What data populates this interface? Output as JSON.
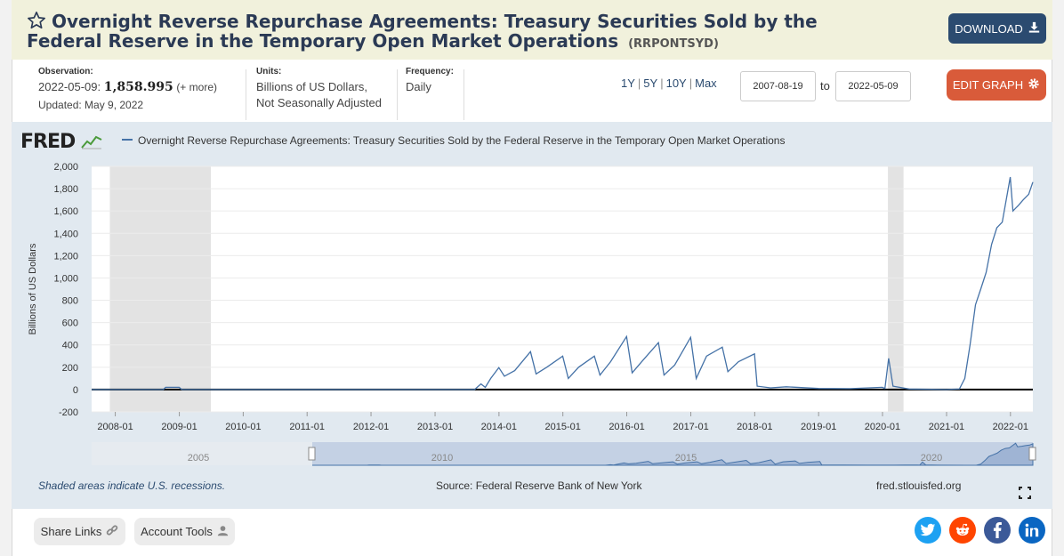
{
  "header": {
    "title": "Overnight Reverse Repurchase Agreements: Treasury Securities Sold by the Federal Reserve in the Temporary Open Market Operations",
    "series_id": "(RRPONTSYD)",
    "download_label": "DOWNLOAD"
  },
  "meta": {
    "observation_label": "Observation:",
    "observation_date": "2022-05-09:",
    "observation_value": "1,858.995",
    "observation_more": "(+ more)",
    "updated": "Updated: May 9, 2022",
    "units_label": "Units:",
    "units_line1": "Billions of US Dollars,",
    "units_line2": "Not Seasonally Adjusted",
    "frequency_label": "Frequency:",
    "frequency_value": "Daily"
  },
  "controls": {
    "ranges": [
      "1Y",
      "5Y",
      "10Y",
      "Max"
    ],
    "start_date": "2007-08-19",
    "to_label": "to",
    "end_date": "2022-05-09",
    "edit_label": "EDIT GRAPH"
  },
  "graph": {
    "logo": "FRED",
    "legend": "Overnight Reverse Repurchase Agreements: Treasury Securities Sold by the Federal Reserve in the Temporary Open Market Operations",
    "shaded_note": "Shaded areas indicate U.S. recessions.",
    "source": "Source: Federal Reserve Bank of New York",
    "site": "fred.stlouisfed.org",
    "navigator_labels": [
      "2005",
      "2010",
      "2015",
      "2020"
    ]
  },
  "chart_data": {
    "type": "line",
    "ylabel": "Billions of US Dollars",
    "ylim": [
      -200,
      2000
    ],
    "yticks": [
      "-200",
      "0",
      "200",
      "400",
      "600",
      "800",
      "1,000",
      "1,200",
      "1,400",
      "1,600",
      "1,800",
      "2,000"
    ],
    "xticks": [
      "2008-01",
      "2009-01",
      "2010-01",
      "2011-01",
      "2012-01",
      "2013-01",
      "2014-01",
      "2015-01",
      "2016-01",
      "2017-01",
      "2018-01",
      "2019-01",
      "2020-01",
      "2021-01",
      "2022-01"
    ],
    "x_range": [
      "2007-08-19",
      "2022-05-09"
    ],
    "recessions": [
      [
        "2007-12-01",
        "2009-06-30"
      ],
      [
        "2020-02-01",
        "2020-04-30"
      ]
    ],
    "series": [
      {
        "color": "#4572a7",
        "points": [
          [
            "2008-10-01",
            0
          ],
          [
            "2008-10-15",
            20
          ],
          [
            "2008-12-31",
            20
          ],
          [
            "2009-01-15",
            0
          ],
          [
            "2013-08-15",
            0
          ],
          [
            "2013-09-20",
            50
          ],
          [
            "2013-10-15",
            20
          ],
          [
            "2013-11-15",
            100
          ],
          [
            "2013-12-31",
            197
          ],
          [
            "2014-02-01",
            120
          ],
          [
            "2014-04-01",
            170
          ],
          [
            "2014-06-30",
            340
          ],
          [
            "2014-08-01",
            140
          ],
          [
            "2014-10-01",
            200
          ],
          [
            "2014-12-31",
            300
          ],
          [
            "2015-02-01",
            100
          ],
          [
            "2015-04-01",
            200
          ],
          [
            "2015-06-30",
            300
          ],
          [
            "2015-08-01",
            130
          ],
          [
            "2015-10-01",
            250
          ],
          [
            "2015-12-31",
            475
          ],
          [
            "2016-02-01",
            150
          ],
          [
            "2016-04-01",
            260
          ],
          [
            "2016-06-30",
            420
          ],
          [
            "2016-08-01",
            130
          ],
          [
            "2016-10-01",
            220
          ],
          [
            "2016-12-31",
            468
          ],
          [
            "2017-02-01",
            100
          ],
          [
            "2017-04-01",
            300
          ],
          [
            "2017-06-30",
            380
          ],
          [
            "2017-08-01",
            160
          ],
          [
            "2017-10-01",
            250
          ],
          [
            "2017-12-31",
            320
          ],
          [
            "2018-01-15",
            30
          ],
          [
            "2018-04-01",
            15
          ],
          [
            "2018-06-30",
            25
          ],
          [
            "2018-12-31",
            10
          ],
          [
            "2019-06-30",
            8
          ],
          [
            "2019-12-31",
            20
          ],
          [
            "2020-01-15",
            10
          ],
          [
            "2020-02-05",
            280
          ],
          [
            "2020-03-01",
            30
          ],
          [
            "2020-06-01",
            5
          ],
          [
            "2020-12-31",
            0
          ],
          [
            "2021-03-15",
            5
          ],
          [
            "2021-04-15",
            100
          ],
          [
            "2021-05-15",
            400
          ],
          [
            "2021-06-15",
            760
          ],
          [
            "2021-07-15",
            900
          ],
          [
            "2021-08-15",
            1050
          ],
          [
            "2021-09-15",
            1300
          ],
          [
            "2021-10-15",
            1450
          ],
          [
            "2021-11-15",
            1500
          ],
          [
            "2021-12-31",
            1904
          ],
          [
            "2022-01-15",
            1600
          ],
          [
            "2022-02-15",
            1650
          ],
          [
            "2022-03-15",
            1700
          ],
          [
            "2022-04-15",
            1750
          ],
          [
            "2022-05-09",
            1858.995
          ]
        ]
      }
    ]
  },
  "footer": {
    "share_label": "Share Links",
    "account_label": "Account Tools"
  },
  "colors": {
    "header_bg": "#f1f1dc",
    "download": "#2b4b70",
    "edit": "#d95b3a",
    "line": "#4572a7",
    "panel": "#e1e9f0",
    "twitter": "#1da1f2",
    "reddit": "#ff4500",
    "facebook": "#3b5998",
    "linkedin": "#0a66c2"
  }
}
